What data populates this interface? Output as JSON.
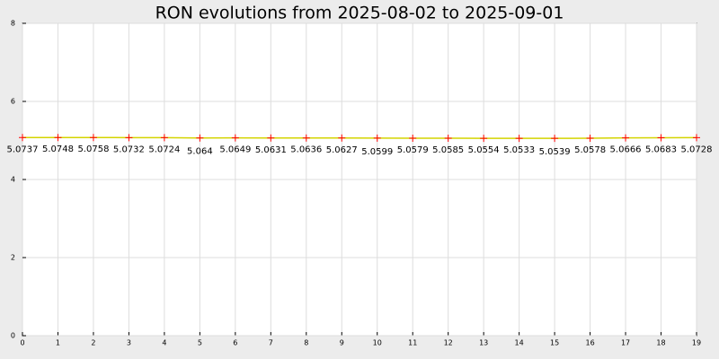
{
  "chart_data": {
    "type": "line",
    "title": "RON evolutions from 2025-08-02 to 2025-09-01",
    "x": [
      0,
      1,
      2,
      3,
      4,
      5,
      6,
      7,
      8,
      9,
      10,
      11,
      12,
      13,
      14,
      15,
      16,
      17,
      18,
      19
    ],
    "values": [
      5.0737,
      5.0748,
      5.0758,
      5.0732,
      5.0724,
      5.064,
      5.0649,
      5.0631,
      5.0636,
      5.0627,
      5.0599,
      5.0579,
      5.0585,
      5.0554,
      5.0533,
      5.0539,
      5.0578,
      5.0666,
      5.0683,
      5.0728
    ],
    "line_color": "#d4d400",
    "marker_color": "#ff0000",
    "xlim": [
      0,
      19
    ],
    "xticks": [
      0,
      1,
      2,
      3,
      4,
      5,
      6,
      7,
      8,
      9,
      10,
      11,
      12,
      13,
      14,
      15,
      16,
      17,
      18,
      19
    ],
    "ylim": [
      0,
      8
    ],
    "yticks": [
      0,
      2,
      4,
      6,
      8
    ],
    "grid": true
  }
}
